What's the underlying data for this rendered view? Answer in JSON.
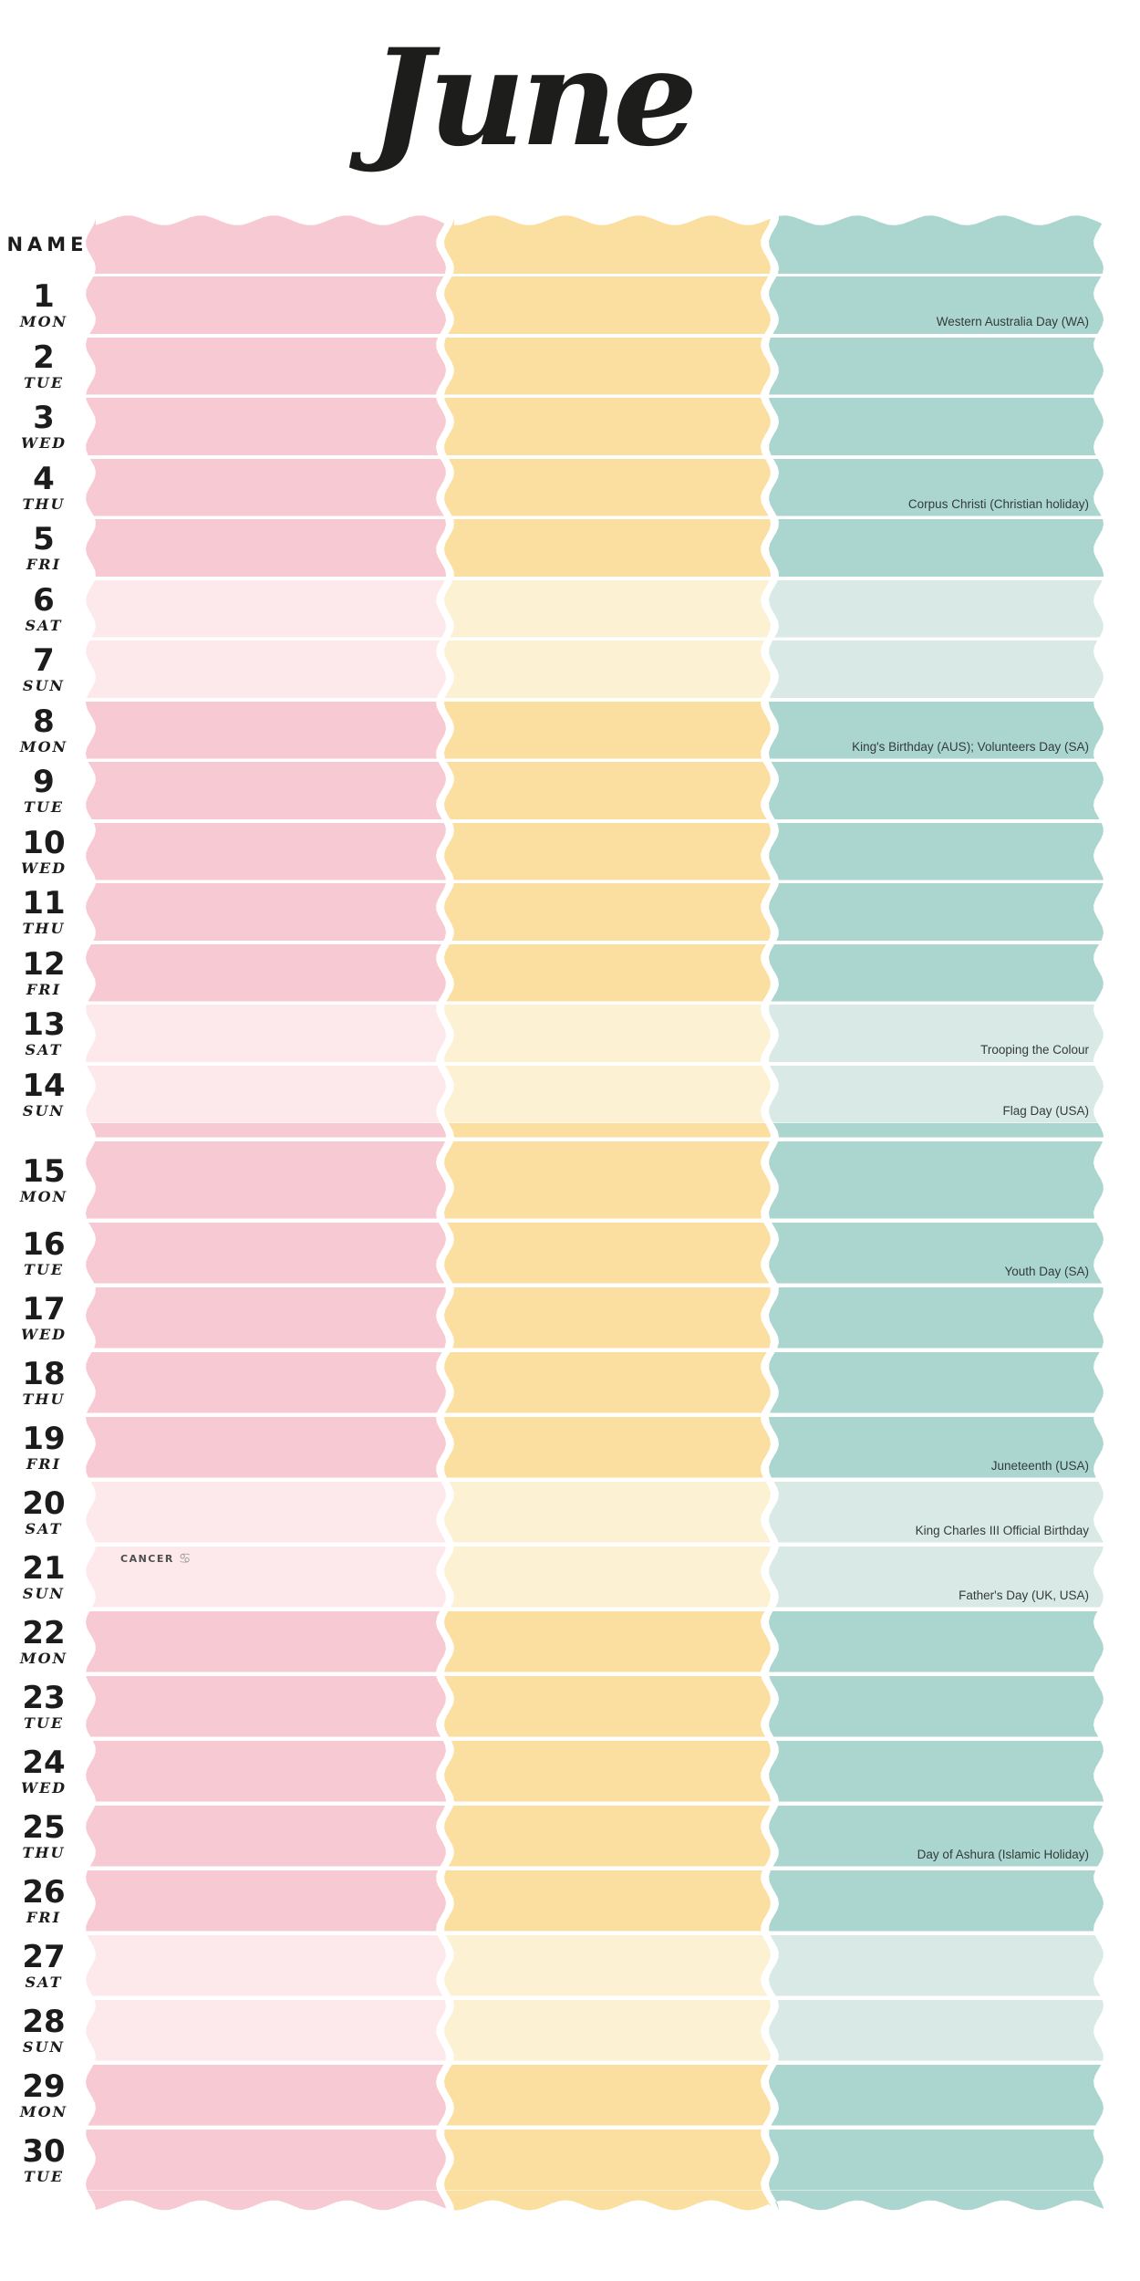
{
  "title": "June",
  "name_header": "NAME",
  "holiday_text_color": "#333b3b",
  "title_color": "#1d1d1b",
  "columns": [
    {
      "name": "column-1-pink",
      "color": "#f7c9d2",
      "weekend_color": "#fde9ec"
    },
    {
      "name": "column-2-yellow",
      "color": "#fbdfa1",
      "weekend_color": "#fdf1d4"
    },
    {
      "name": "column-3-teal",
      "color": "#abd6cf",
      "weekend_color": "#d9eae6"
    }
  ],
  "days": [
    {
      "num": "1",
      "dow": "MON",
      "weekend": false,
      "holiday": "Western Australia Day (WA)"
    },
    {
      "num": "2",
      "dow": "TUE",
      "weekend": false
    },
    {
      "num": "3",
      "dow": "WED",
      "weekend": false
    },
    {
      "num": "4",
      "dow": "THU",
      "weekend": false,
      "holiday": "Corpus Christi (Christian holiday)"
    },
    {
      "num": "5",
      "dow": "FRI",
      "weekend": false
    },
    {
      "num": "6",
      "dow": "SAT",
      "weekend": true
    },
    {
      "num": "7",
      "dow": "SUN",
      "weekend": true
    },
    {
      "num": "8",
      "dow": "MON",
      "weekend": false,
      "holiday": "King's Birthday (AUS); Volunteers Day (SA)"
    },
    {
      "num": "9",
      "dow": "TUE",
      "weekend": false
    },
    {
      "num": "10",
      "dow": "WED",
      "weekend": false
    },
    {
      "num": "11",
      "dow": "THU",
      "weekend": false
    },
    {
      "num": "12",
      "dow": "FRI",
      "weekend": false
    },
    {
      "num": "13",
      "dow": "SAT",
      "weekend": true,
      "holiday": "Trooping the Colour"
    },
    {
      "num": "14",
      "dow": "SUN",
      "weekend": true,
      "holiday": "Flag Day (USA)"
    },
    {
      "num": "15",
      "dow": "MON",
      "weekend": false
    },
    {
      "num": "16",
      "dow": "TUE",
      "weekend": false,
      "holiday": "Youth Day (SA)"
    },
    {
      "num": "17",
      "dow": "WED",
      "weekend": false
    },
    {
      "num": "18",
      "dow": "THU",
      "weekend": false
    },
    {
      "num": "19",
      "dow": "FRI",
      "weekend": false,
      "holiday": "Juneteenth (USA)"
    },
    {
      "num": "20",
      "dow": "SAT",
      "weekend": true,
      "holiday": "King Charles III Official Birthday"
    },
    {
      "num": "21",
      "dow": "SUN",
      "weekend": true,
      "holiday": "Father's Day (UK, USA)",
      "zodiac_label": "CANCER",
      "zodiac_symbol": "♋"
    },
    {
      "num": "22",
      "dow": "MON",
      "weekend": false
    },
    {
      "num": "23",
      "dow": "TUE",
      "weekend": false
    },
    {
      "num": "24",
      "dow": "WED",
      "weekend": false
    },
    {
      "num": "25",
      "dow": "THU",
      "weekend": false,
      "holiday": "Day of Ashura (Islamic Holiday)"
    },
    {
      "num": "26",
      "dow": "FRI",
      "weekend": false
    },
    {
      "num": "27",
      "dow": "SAT",
      "weekend": true
    },
    {
      "num": "28",
      "dow": "SUN",
      "weekend": true
    },
    {
      "num": "29",
      "dow": "MON",
      "weekend": false
    },
    {
      "num": "30",
      "dow": "TUE",
      "weekend": false
    }
  ]
}
